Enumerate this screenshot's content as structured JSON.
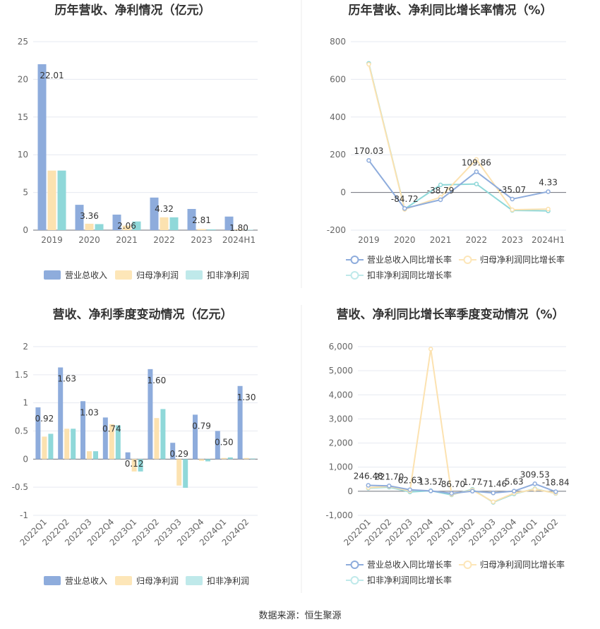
{
  "colors": {
    "revenue": "#8eacdc",
    "net_profit": "#fce2b0",
    "deducted_profit": "#8fd8d9"
  },
  "source": "数据来源：恒生聚源",
  "chart_data": [
    {
      "id": "annual-amount",
      "type": "bar",
      "title": "历年营收、净利情况（亿元）",
      "categories": [
        "2019",
        "2020",
        "2021",
        "2022",
        "2023",
        "2024H1"
      ],
      "ylim": [
        0,
        25
      ],
      "yticks": [
        0,
        5,
        10,
        15,
        20,
        25
      ],
      "grid": true,
      "legend": "bottom",
      "series": [
        {
          "name": "营业总收入",
          "values": [
            22.01,
            3.36,
            2.06,
            4.32,
            2.81,
            1.8
          ],
          "labels": [
            "22.01",
            "3.36",
            "2.06",
            "4.32",
            "2.81",
            "1.80"
          ]
        },
        {
          "name": "归母净利润",
          "values": [
            7.9,
            0.85,
            0.6,
            1.7,
            0.15,
            0.1
          ]
        },
        {
          "name": "扣非净利润",
          "values": [
            7.9,
            0.8,
            1.15,
            1.7,
            0.1,
            0.05
          ]
        }
      ]
    },
    {
      "id": "annual-growth",
      "type": "line",
      "title": "历年营收、净利同比增长率情况（%）",
      "categories": [
        "2019",
        "2020",
        "2021",
        "2022",
        "2023",
        "2024H1"
      ],
      "ylim": [
        -200,
        800
      ],
      "yticks": [
        -200,
        0,
        200,
        400,
        600,
        800
      ],
      "grid": true,
      "legend": "bottom",
      "series": [
        {
          "name": "营业总收入同比增长率",
          "values": [
            170.03,
            -84.72,
            -38.79,
            109.86,
            -35.07,
            4.33
          ],
          "labels": [
            "170.03",
            "-84.72",
            "-38.79",
            "109.86",
            "-35.07",
            "4.33"
          ]
        },
        {
          "name": "归母净利润同比增长率",
          "values": [
            680,
            -90,
            -25,
            175,
            -92,
            -88
          ]
        },
        {
          "name": "扣非净利润同比增长率",
          "values": [
            685,
            -88,
            40,
            45,
            -95,
            -98
          ]
        }
      ]
    },
    {
      "id": "quarterly-amount",
      "type": "bar",
      "title": "营收、净利季度变动情况（亿元）",
      "categories": [
        "2022Q1",
        "2022Q2",
        "2022Q3",
        "2022Q4",
        "2023Q1",
        "2023Q2",
        "2023Q3",
        "2023Q4",
        "2024Q1",
        "2024Q2"
      ],
      "ylim": [
        -1,
        2
      ],
      "yticks": [
        -1,
        -0.5,
        0,
        0.5,
        1,
        1.5,
        2
      ],
      "grid": true,
      "legend": "bottom",
      "series": [
        {
          "name": "营业总收入",
          "values": [
            0.92,
            1.63,
            1.03,
            0.74,
            0.12,
            1.6,
            0.29,
            0.79,
            0.5,
            1.3
          ],
          "labels": [
            "0.92",
            "1.63",
            "1.03",
            "0.74",
            "0.12",
            "1.60",
            "0.29",
            "0.79",
            "0.50",
            "1.30"
          ]
        },
        {
          "name": "归母净利润",
          "values": [
            0.4,
            0.54,
            0.14,
            0.62,
            -0.22,
            0.73,
            -0.47,
            -0.03,
            0.02,
            0.02
          ]
        },
        {
          "name": "扣非净利润",
          "values": [
            0.45,
            0.54,
            0.14,
            0.6,
            -0.22,
            0.89,
            -0.51,
            -0.04,
            0.03,
            0.01
          ]
        }
      ]
    },
    {
      "id": "quarterly-growth",
      "type": "line",
      "title": "营收、净利同比增长率季度变动情况（%）",
      "categories": [
        "2022Q1",
        "2022Q2",
        "2022Q3",
        "2022Q4",
        "2023Q1",
        "2023Q2",
        "2023Q3",
        "2023Q4",
        "2024Q1",
        "2024Q2"
      ],
      "ylim": [
        -1000,
        6000
      ],
      "yticks": [
        -1000,
        0,
        1000,
        2000,
        3000,
        4000,
        5000,
        6000
      ],
      "yticklabels": [
        "-1,000",
        "0",
        "1,000",
        "2,000",
        "3,000",
        "4,000",
        "5,000",
        "6,000"
      ],
      "grid": true,
      "legend": "bottom",
      "series": [
        {
          "name": "营业总收入同比增长率",
          "values": [
            246.48,
            221.7,
            62.63,
            13.57,
            -86.7,
            1.77,
            -71.46,
            5.63,
            309.53,
            -18.84
          ],
          "labels": [
            "246.48",
            "221.70",
            "62.63",
            "13.57",
            "-86.70",
            "1.77",
            "-71.46",
            "5.63",
            "309.53",
            "-18.84"
          ]
        },
        {
          "name": "归母净利润同比增长率",
          "values": [
            150,
            200,
            10,
            5900,
            -130,
            50,
            -440,
            -80,
            80,
            -80
          ]
        },
        {
          "name": "扣非净利润同比增长率",
          "values": [
            130,
            170,
            -30,
            20,
            -150,
            80,
            -460,
            -110,
            100,
            -90
          ]
        }
      ]
    }
  ]
}
